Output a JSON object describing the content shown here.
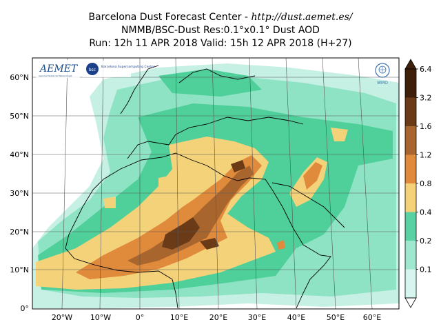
{
  "title": {
    "line1_prefix": "Barcelona Dust Forecast Center - ",
    "line1_url": "http://dust.aemet.es/",
    "line2": "NMMB/BSC-Dust   Res:0.1°x0.1°   Dust AOD",
    "line3": "Run: 12h 11 APR 2018   Valid: 15h 12 APR 2018 (H+27)"
  },
  "map": {
    "lon_labels": [
      "20°W",
      "10°W",
      "0°",
      "10°E",
      "20°E",
      "30°E",
      "40°E",
      "50°E",
      "60°E"
    ],
    "lat_labels": [
      "60°N",
      "50°N",
      "40°N",
      "30°N",
      "20°N",
      "10°N",
      "0°"
    ]
  },
  "logos": {
    "aemet": "AEMET",
    "aemet_sub": "Agencia Estatal de Meteorología",
    "bsc": "Barcelona Supercomputing Center",
    "bsc_short": "bsc",
    "wmo": "WMO"
  },
  "colorbar": {
    "labels": [
      "6.4",
      "3.2",
      "1.6",
      "1.2",
      "0.8",
      "0.4",
      "0.2",
      "0.1"
    ],
    "colors": [
      "#3d1f0a",
      "#6b3a16",
      "#a8662e",
      "#e08a3c",
      "#f5d27a",
      "#59d1a3",
      "#9fe8cf",
      "#d6f5ee"
    ]
  }
}
